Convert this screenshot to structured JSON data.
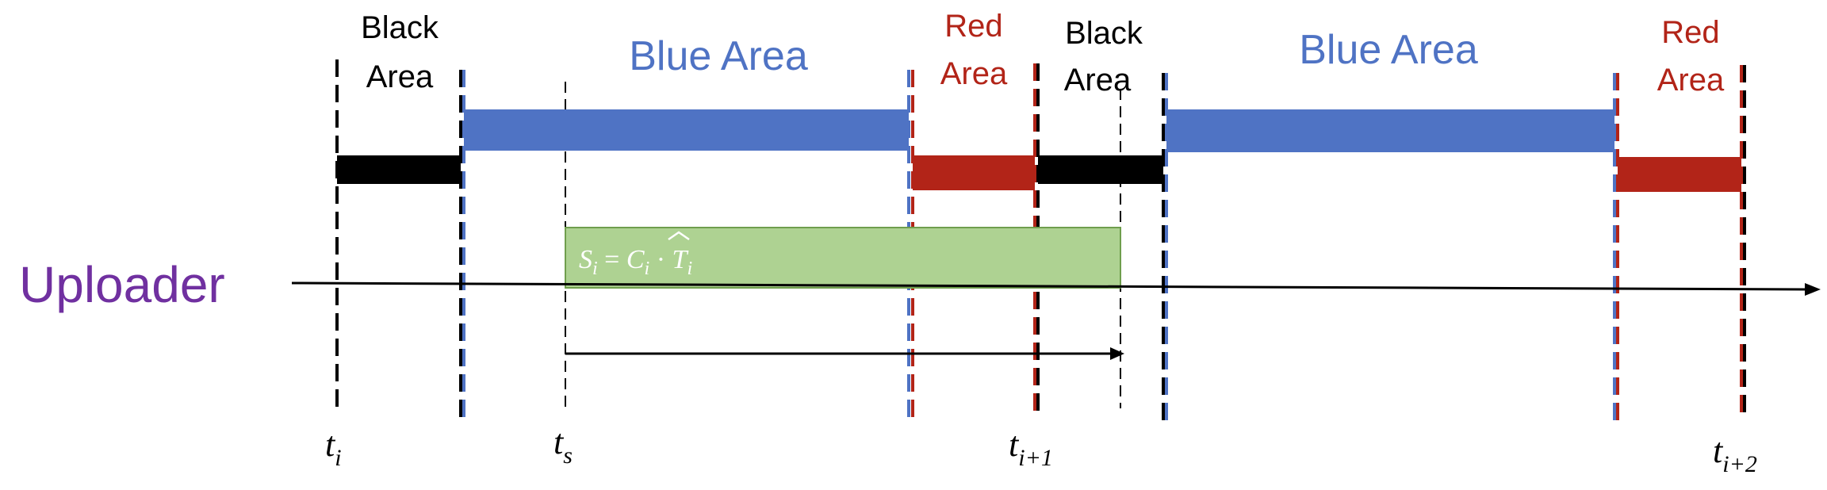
{
  "axis_label": "Uploader",
  "area_labels": {
    "black_1_line1": "Black",
    "black_1_line2": "Area",
    "blue_1": "Blue Area",
    "red_1_line1": "Red",
    "red_1_line2": "Area",
    "black_2_line1": "Black",
    "black_2_line2": "Area",
    "blue_2": "Blue Area",
    "red_2_line1": "Red",
    "red_2_line2": "Area"
  },
  "formula": {
    "s": "S",
    "s_sub": "i",
    "eq": " = ",
    "c": "C",
    "c_hat": "^",
    "c_sub": "i",
    "dot": " · ",
    "t": "T",
    "t_sub": "i"
  },
  "time_labels": {
    "ti": "t",
    "ti_sub": "i",
    "ts": "t",
    "ts_sub": "s",
    "ti1": "t",
    "ti1_sub": "i+1",
    "ti2": "t",
    "ti2_sub": "i+2"
  },
  "colors": {
    "black": "#000000",
    "blue": "#4f73c4",
    "red": "#b22418",
    "green_fill": "#aed292",
    "green_stroke": "#6f9e4d",
    "purple": "#7030a0"
  }
}
